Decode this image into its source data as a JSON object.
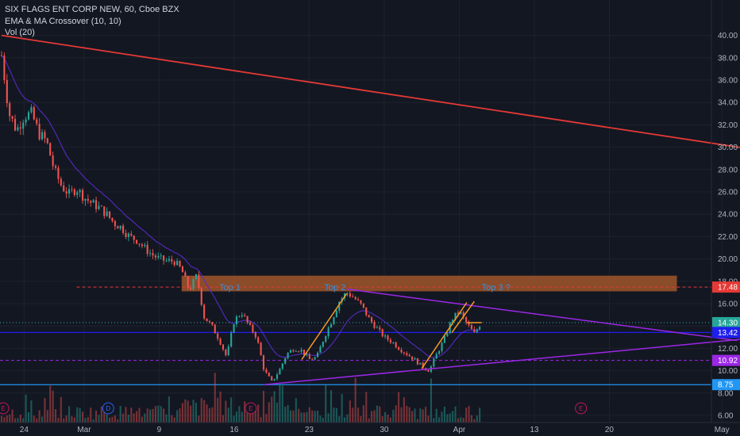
{
  "legend": {
    "title": "SIX FLAGS ENT CORP NEW, 60, Cboe BZX",
    "indicator": "EMA & MA Crossover (10, 10)",
    "volume": "Vol (20)"
  },
  "chart_data": {
    "type": "candlestick",
    "title": "SIX FLAGS ENT CORP NEW, 60, Cboe BZX",
    "ylim": [
      5.6,
      41.2
    ],
    "x_ticks": [
      {
        "label": "24",
        "t": 3
      },
      {
        "label": "Mar",
        "t": 11
      },
      {
        "label": "9",
        "t": 21
      },
      {
        "label": "16",
        "t": 31
      },
      {
        "label": "23",
        "t": 41
      },
      {
        "label": "30",
        "t": 51
      },
      {
        "label": "Apr",
        "t": 61
      },
      {
        "label": "13",
        "t": 71
      },
      {
        "label": "20",
        "t": 81
      },
      {
        "label": "May",
        "t": 96
      }
    ],
    "y_ticks": [
      6,
      8,
      10,
      12,
      14,
      16,
      18,
      20,
      22,
      24,
      26,
      28,
      30,
      32,
      34,
      36,
      38,
      40
    ],
    "price_path": [
      [
        0,
        38.2
      ],
      [
        1,
        33.0
      ],
      [
        2,
        31.5
      ],
      [
        3,
        32.8
      ],
      [
        4,
        33.0
      ],
      [
        5,
        31.2
      ],
      [
        6,
        30.5
      ],
      [
        7,
        28.0
      ],
      [
        8,
        26.5
      ],
      [
        9,
        25.8
      ],
      [
        10,
        26.3
      ],
      [
        11,
        25.5
      ],
      [
        12,
        25.0
      ],
      [
        13,
        24.6
      ],
      [
        14,
        24.0
      ],
      [
        15,
        23.2
      ],
      [
        16,
        22.8
      ],
      [
        17,
        22.0
      ],
      [
        18,
        21.7
      ],
      [
        19,
        21.0
      ],
      [
        20,
        20.4
      ],
      [
        21,
        20.0
      ],
      [
        22,
        19.8
      ],
      [
        23,
        19.8
      ],
      [
        24,
        19.0
      ],
      [
        25,
        17.2
      ],
      [
        26,
        18.5
      ],
      [
        27,
        14.8
      ],
      [
        28,
        14.0
      ],
      [
        29,
        12.8
      ],
      [
        30,
        11.2
      ],
      [
        31,
        14.5
      ],
      [
        32,
        15.2
      ],
      [
        33,
        14.0
      ],
      [
        34,
        13.0
      ],
      [
        35,
        10.0
      ],
      [
        36,
        9.0
      ],
      [
        37,
        10.0
      ],
      [
        38,
        11.5
      ],
      [
        39,
        12.0
      ],
      [
        40,
        11.8
      ],
      [
        41,
        11.0
      ],
      [
        42,
        11.2
      ],
      [
        43,
        13.0
      ],
      [
        44,
        14.5
      ],
      [
        45,
        16.2
      ],
      [
        46,
        17.0
      ],
      [
        47,
        16.5
      ],
      [
        48,
        15.8
      ],
      [
        49,
        14.6
      ],
      [
        50,
        13.8
      ],
      [
        51,
        13.0
      ],
      [
        52,
        12.6
      ],
      [
        53,
        12.0
      ],
      [
        54,
        11.5
      ],
      [
        55,
        11.0
      ],
      [
        56,
        10.4
      ],
      [
        57,
        10.0
      ],
      [
        58,
        11.5
      ],
      [
        59,
        12.8
      ],
      [
        60,
        14.6
      ],
      [
        61,
        15.3
      ],
      [
        62,
        14.2
      ],
      [
        63,
        13.3
      ],
      [
        64,
        14.4
      ]
    ],
    "lines": {
      "red_trend": {
        "from": [
          0,
          40.0
        ],
        "to": [
          106,
          29.2
        ],
        "color": "#e53935"
      },
      "purple_upper": {
        "from": [
          46,
          17.3
        ],
        "to": [
          98,
          12.7
        ],
        "color": "#9c27e6"
      },
      "purple_lower": {
        "from": [
          35,
          8.75
        ],
        "to": [
          100,
          12.9
        ],
        "color": "#9c27e6"
      },
      "orange_1": {
        "from": [
          40,
          11.0
        ],
        "to": [
          46,
          16.9
        ],
        "color": "#f59a23"
      },
      "orange_2": {
        "from": [
          56,
          10.2
        ],
        "to": [
          62,
          16.1
        ],
        "color": "#f59a23"
      },
      "orange_3": {
        "from": [
          60,
          13.4
        ],
        "to": [
          63,
          16.2
        ],
        "color": "#f59a23"
      },
      "orange_flat": {
        "from": [
          62,
          14.3
        ],
        "to": [
          64,
          14.3
        ],
        "color": "#f59a23"
      }
    },
    "resistance_zone": {
      "from": 24,
      "to": 90,
      "low": 17.1,
      "high": 18.5,
      "color": "#a0562a"
    },
    "horizontal_levels": [
      {
        "value": 17.48,
        "label": "17.48",
        "color": "#e53935",
        "style": "dashed"
      },
      {
        "value": 14.3,
        "label": "14.30",
        "color": "#26a69a",
        "style": "dotted"
      },
      {
        "value": 13.42,
        "label": "13.42",
        "color": "#1e1ef0",
        "style": "solid"
      },
      {
        "value": 10.92,
        "label": "10.92",
        "color": "#9c27e6",
        "style": "dashed"
      },
      {
        "value": 8.75,
        "label": "8.75",
        "color": "#2196f3",
        "style": "solid"
      }
    ],
    "annotations": [
      {
        "text": "Top 1",
        "t": 29,
        "y": 17.5
      },
      {
        "text": "Top 2",
        "t": 43,
        "y": 17.5
      },
      {
        "text": "Top 3 ?",
        "t": 64,
        "y": 17.5
      }
    ],
    "events": [
      {
        "label": "E",
        "t": 0,
        "color": "#c2185b"
      },
      {
        "label": "D",
        "t": 14,
        "color": "#2962ff"
      },
      {
        "label": "E",
        "t": 33,
        "color": "#c2185b"
      },
      {
        "label": "E",
        "t": 77,
        "color": "#c2185b"
      }
    ]
  }
}
